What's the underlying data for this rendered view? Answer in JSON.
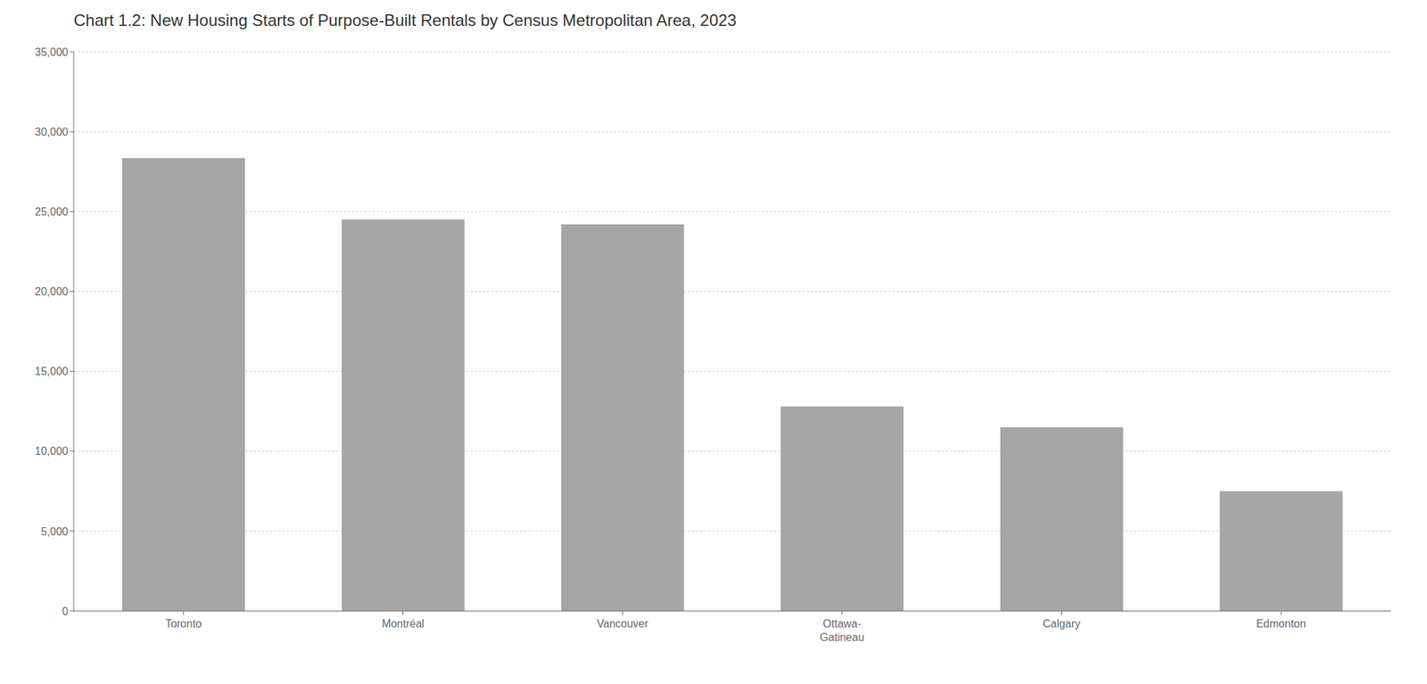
{
  "chart_data": {
    "type": "bar",
    "title": "Chart 1.2: New Housing Starts of Purpose-Built Rentals by Census Metropolitan Area, 2023",
    "categories": [
      "Toronto",
      "Montréal",
      "Vancouver",
      "Ottawa-\nGatineau",
      "Calgary",
      "Edmonton"
    ],
    "values": [
      28355,
      24500,
      24200,
      12800,
      11500,
      7500
    ],
    "color": "#a6a6a6",
    "ylim": [
      0,
      35000
    ],
    "yticks": [
      0,
      {
        "value": 5000,
        "label": "5,000"
      },
      {
        "value": 10000,
        "label": "10,000"
      },
      {
        "value": 15000,
        "label": "15,000"
      },
      {
        "value": 20000,
        "label": "20,000"
      },
      {
        "value": 25000,
        "label": "25,000"
      },
      {
        "value": 30000,
        "label": "30,000"
      },
      {
        "value": 35000,
        "label": "35,000"
      }
    ],
    "grid": true
  }
}
